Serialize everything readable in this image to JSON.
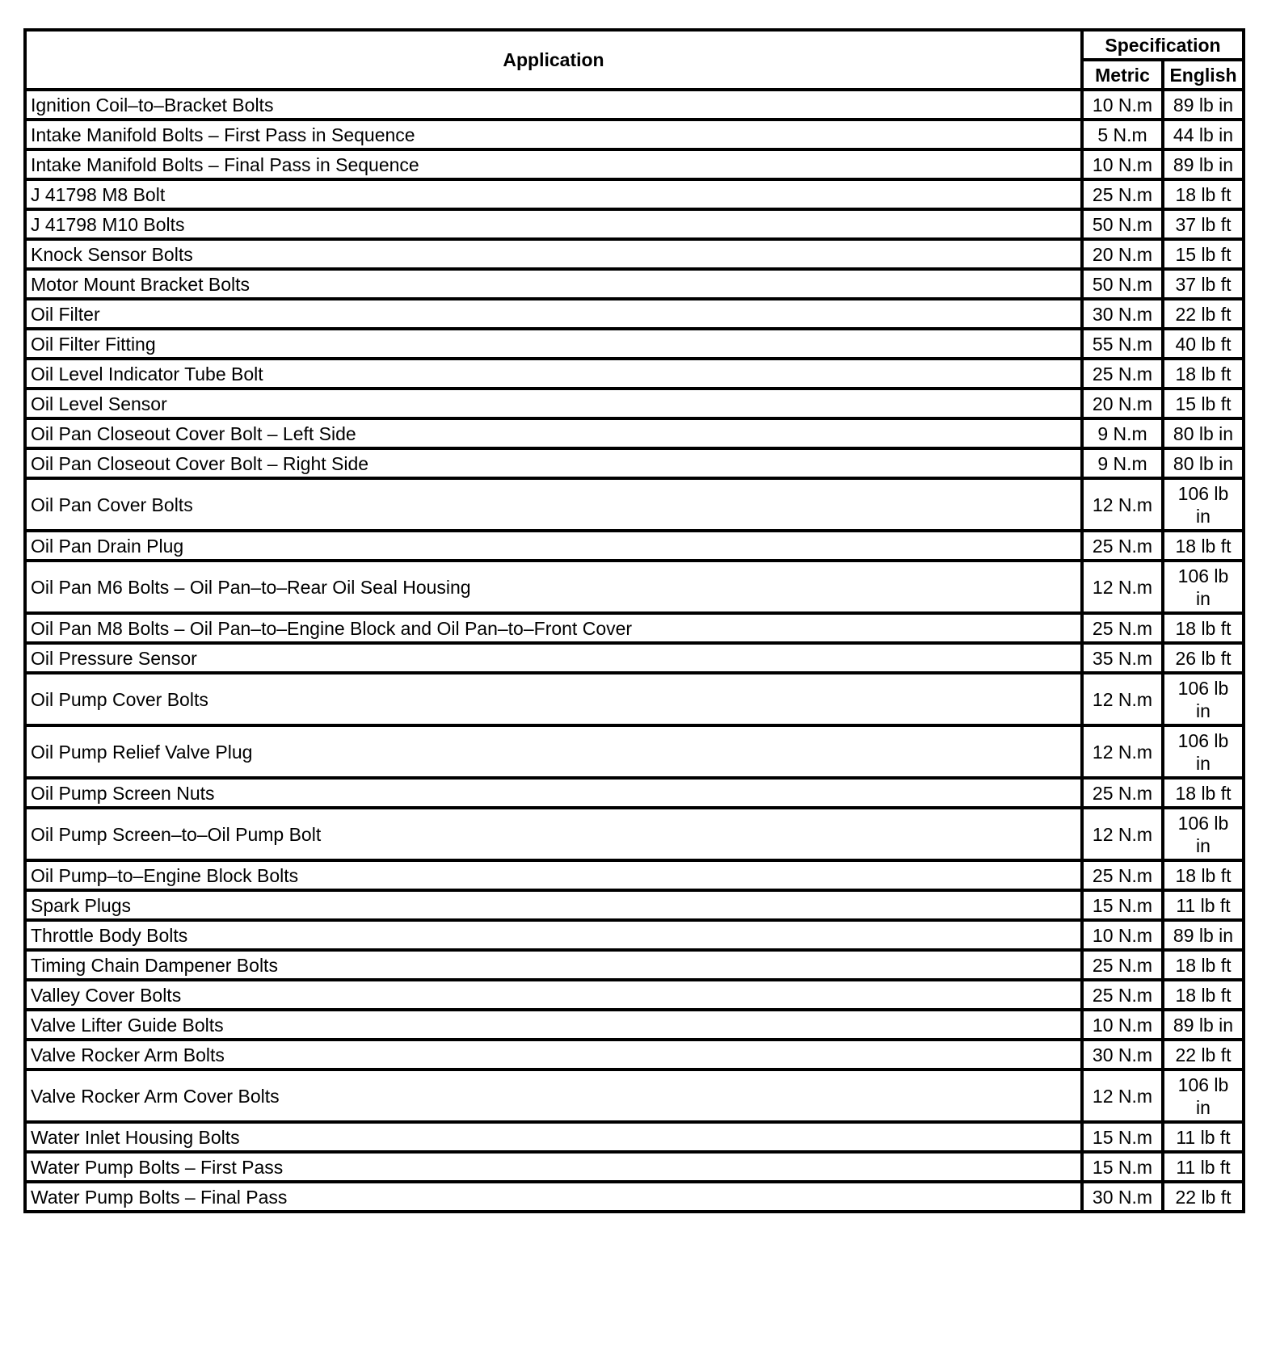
{
  "header": {
    "application": "Application",
    "specification": "Specification",
    "metric": "Metric",
    "english": "English"
  },
  "rows": [
    {
      "application": "Ignition Coil–to–Bracket Bolts",
      "metric": "10 N.m",
      "english": "89 lb in"
    },
    {
      "application": "Intake Manifold Bolts – First Pass in Sequence",
      "metric": "5 N.m",
      "english": "44 lb in"
    },
    {
      "application": "Intake Manifold Bolts – Final Pass in Sequence",
      "metric": "10 N.m",
      "english": "89 lb in"
    },
    {
      "application": "J 41798 M8 Bolt",
      "metric": "25 N.m",
      "english": "18 lb ft"
    },
    {
      "application": "J 41798 M10 Bolts",
      "metric": "50 N.m",
      "english": "37 lb ft"
    },
    {
      "application": "Knock Sensor Bolts",
      "metric": "20 N.m",
      "english": "15 lb ft"
    },
    {
      "application": "Motor Mount Bracket Bolts",
      "metric": "50 N.m",
      "english": "37 lb ft"
    },
    {
      "application": "Oil Filter",
      "metric": "30 N.m",
      "english": "22 lb ft"
    },
    {
      "application": "Oil Filter Fitting",
      "metric": "55 N.m",
      "english": "40 lb ft"
    },
    {
      "application": "Oil Level Indicator Tube Bolt",
      "metric": "25 N.m",
      "english": "18 lb ft"
    },
    {
      "application": "Oil Level Sensor",
      "metric": "20 N.m",
      "english": "15 lb ft"
    },
    {
      "application": "Oil Pan Closeout Cover Bolt – Left Side",
      "metric": "9 N.m",
      "english": "80 lb in"
    },
    {
      "application": "Oil Pan Closeout Cover Bolt – Right Side",
      "metric": "9 N.m",
      "english": "80 lb in"
    },
    {
      "application": "Oil Pan Cover Bolts",
      "metric": "12 N.m",
      "english": "106 lb in"
    },
    {
      "application": "Oil Pan Drain Plug",
      "metric": "25 N.m",
      "english": "18 lb ft"
    },
    {
      "application": "Oil Pan M6 Bolts – Oil Pan–to–Rear Oil Seal Housing",
      "metric": "12 N.m",
      "english": "106 lb in"
    },
    {
      "application": "Oil Pan M8 Bolts – Oil Pan–to–Engine Block and Oil Pan–to–Front Cover",
      "metric": "25 N.m",
      "english": "18 lb ft"
    },
    {
      "application": "Oil Pressure Sensor",
      "metric": "35 N.m",
      "english": "26 lb ft"
    },
    {
      "application": "Oil Pump Cover Bolts",
      "metric": "12 N.m",
      "english": "106 lb in"
    },
    {
      "application": "Oil Pump Relief Valve Plug",
      "metric": "12 N.m",
      "english": "106 lb in"
    },
    {
      "application": "Oil Pump Screen Nuts",
      "metric": "25 N.m",
      "english": "18 lb ft"
    },
    {
      "application": "Oil Pump Screen–to–Oil Pump Bolt",
      "metric": "12 N.m",
      "english": "106 lb in"
    },
    {
      "application": "Oil Pump–to–Engine Block Bolts",
      "metric": "25 N.m",
      "english": "18 lb ft"
    },
    {
      "application": "Spark Plugs",
      "metric": "15 N.m",
      "english": "11 lb ft"
    },
    {
      "application": "Throttle Body Bolts",
      "metric": "10 N.m",
      "english": "89 lb in"
    },
    {
      "application": "Timing Chain Dampener Bolts",
      "metric": "25 N.m",
      "english": "18 lb ft"
    },
    {
      "application": "Valley Cover Bolts",
      "metric": "25 N.m",
      "english": "18 lb ft"
    },
    {
      "application": "Valve Lifter Guide Bolts",
      "metric": "10 N.m",
      "english": "89 lb in"
    },
    {
      "application": "Valve Rocker Arm Bolts",
      "metric": "30 N.m",
      "english": "22 lb ft"
    },
    {
      "application": "Valve Rocker Arm Cover Bolts",
      "metric": "12 N.m",
      "english": "106 lb in"
    },
    {
      "application": "Water Inlet Housing Bolts",
      "metric": "15 N.m",
      "english": "11 lb ft"
    },
    {
      "application": "Water Pump Bolts – First Pass",
      "metric": "15 N.m",
      "english": "11 lb ft"
    },
    {
      "application": "Water Pump Bolts – Final Pass",
      "metric": "30 N.m",
      "english": "22 lb ft"
    }
  ]
}
